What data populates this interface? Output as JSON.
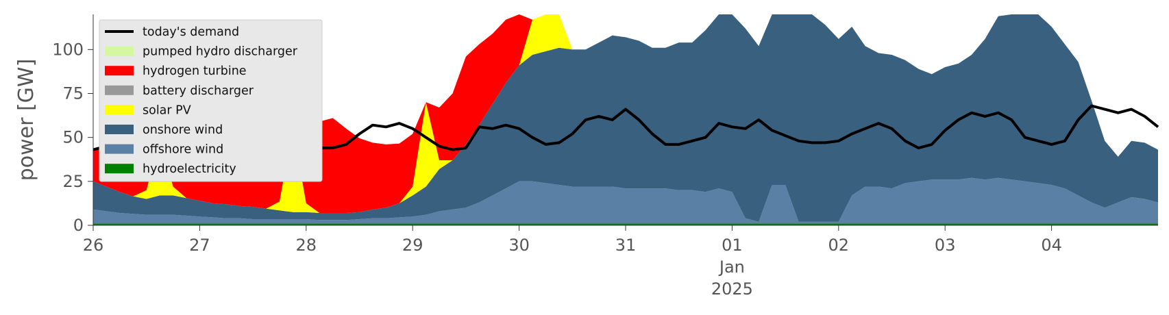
{
  "chart_data": {
    "type": "area",
    "ylabel": "power [GW]",
    "ylim": [
      0,
      120
    ],
    "yticks": [
      0,
      25,
      50,
      75,
      100
    ],
    "x_start": "2024-12-26T00:00",
    "x_end": "2025-01-05T00:00",
    "x_step_hours": 3,
    "xticks": [
      {
        "date": "2024-12-26",
        "label": "26"
      },
      {
        "date": "2024-12-27",
        "label": "27"
      },
      {
        "date": "2024-12-28",
        "label": "28"
      },
      {
        "date": "2024-12-29",
        "label": "29"
      },
      {
        "date": "2024-12-30",
        "label": "30"
      },
      {
        "date": "2024-12-31",
        "label": "31"
      },
      {
        "date": "2025-01-01",
        "label": "01",
        "sublabel1": "Jan",
        "sublabel2": "2025"
      },
      {
        "date": "2025-01-02",
        "label": "02"
      },
      {
        "date": "2025-01-03",
        "label": "03"
      },
      {
        "date": "2025-01-04",
        "label": "04"
      }
    ],
    "grid": false,
    "legend_position": "upper left",
    "series": [
      {
        "name": "hydroelectricity",
        "color": "#008000",
        "values": [
          1,
          1,
          1,
          1,
          1,
          1,
          1,
          1,
          1,
          1,
          1,
          1,
          1,
          1,
          1,
          1,
          1,
          1,
          1,
          1,
          1,
          1,
          1,
          1,
          1,
          1,
          1,
          1,
          1,
          1,
          1,
          1,
          1,
          1,
          1,
          1,
          1,
          1,
          1,
          1,
          1,
          1,
          1,
          1,
          1,
          1,
          1,
          1,
          1,
          1,
          1,
          1,
          1,
          1,
          1,
          1,
          1,
          1,
          1,
          1,
          1,
          1,
          1,
          1,
          1,
          1,
          1,
          1,
          1,
          1,
          1,
          1,
          1,
          1,
          1,
          1,
          1,
          1,
          1,
          1,
          1
        ]
      },
      {
        "name": "offshore wind",
        "color": "#5b80a5",
        "values": [
          8,
          7,
          6,
          5.5,
          5,
          5,
          5,
          4.5,
          4,
          3.5,
          3,
          3,
          2.5,
          2.5,
          2.5,
          2.5,
          2.5,
          2,
          2,
          2,
          2.5,
          3,
          3,
          3.5,
          4,
          5,
          7,
          8,
          9,
          12,
          16,
          20,
          24,
          24,
          23,
          22,
          21,
          21,
          21,
          21,
          20,
          20,
          20,
          20,
          19,
          19,
          18,
          20,
          18,
          3,
          1,
          22,
          22,
          1,
          1,
          1,
          1,
          16,
          21,
          21,
          20,
          23,
          24,
          25,
          25,
          25,
          26,
          25,
          26,
          25,
          24,
          23,
          22,
          20,
          16,
          12,
          9,
          12,
          15,
          14,
          12
        ]
      },
      {
        "name": "onshore wind",
        "color": "#3a6080",
        "values": [
          16,
          14,
          12,
          10,
          9,
          11,
          11,
          10,
          9,
          8,
          8,
          7,
          7,
          6,
          5,
          4,
          4,
          4,
          4,
          4,
          4,
          5,
          6,
          8,
          12,
          16,
          24,
          28,
          36,
          44,
          52,
          60,
          66,
          72,
          75,
          78,
          78,
          78,
          82,
          86,
          86,
          84,
          80,
          80,
          84,
          84,
          92,
          100,
          105,
          108,
          100,
          100,
          108,
          118,
          118,
          112,
          104,
          96,
          80,
          76,
          76,
          70,
          64,
          60,
          64,
          66,
          70,
          80,
          92,
          104,
          110,
          100,
          90,
          82,
          76,
          58,
          38,
          26,
          32,
          32,
          30
        ]
      },
      {
        "name": "solar PV",
        "color": "#ffff00",
        "values": [
          0,
          0,
          0,
          0,
          5,
          32,
          5,
          0,
          0,
          0,
          0,
          0,
          0,
          0,
          5,
          48,
          5,
          0,
          0,
          0,
          0,
          0,
          0,
          0,
          5,
          48,
          5,
          0,
          0,
          0,
          0,
          0,
          0,
          20,
          78,
          20,
          0,
          0,
          0,
          0,
          0,
          0,
          0,
          0,
          0,
          0,
          0,
          0,
          0,
          0,
          0,
          0,
          0,
          0,
          0,
          0,
          0,
          0,
          0,
          0,
          0,
          0,
          0,
          0,
          0,
          0,
          0,
          0,
          0,
          0,
          0,
          0,
          0,
          0,
          0,
          0,
          0,
          0,
          0,
          0,
          0
        ]
      },
      {
        "name": "battery discharger",
        "color": "#999999",
        "values": [
          0,
          0,
          0,
          0,
          0,
          0,
          0,
          0,
          0,
          0,
          0,
          0,
          0,
          0,
          0,
          0,
          0,
          0,
          0,
          0,
          0,
          0,
          0,
          0,
          0,
          0,
          0,
          0,
          0,
          0,
          0,
          0,
          0,
          0,
          0,
          0,
          0,
          0,
          0,
          0,
          0,
          0,
          0,
          0,
          0,
          0,
          0,
          0,
          0,
          0,
          0,
          0,
          0,
          0,
          0,
          0,
          0,
          0,
          0,
          0,
          0,
          0,
          0,
          0,
          0,
          0,
          0,
          0,
          0,
          0,
          0,
          0,
          0,
          0,
          0,
          0,
          0,
          0,
          0,
          0,
          0
        ]
      },
      {
        "name": "hydrogen turbine",
        "color": "#ff0000",
        "values": [
          18,
          22,
          24,
          28,
          30,
          10,
          30,
          34,
          36,
          40,
          44,
          50,
          52,
          54,
          50,
          4,
          48,
          52,
          54,
          48,
          42,
          38,
          36,
          34,
          30,
          0,
          30,
          38,
          50,
          46,
          40,
          36,
          32,
          0,
          0,
          0,
          0,
          0,
          0,
          0,
          0,
          0,
          0,
          0,
          0,
          0,
          0,
          0,
          0,
          0,
          0,
          0,
          0,
          0,
          0,
          0,
          0,
          0,
          0,
          0,
          0,
          0,
          0,
          0,
          0,
          0,
          0,
          0,
          0,
          0,
          0,
          0,
          0,
          0,
          0,
          0,
          0,
          0,
          0,
          0,
          0
        ]
      },
      {
        "name": "pumped hydro discharger",
        "color": "#d4f7a2",
        "values": [
          0,
          0,
          0,
          0,
          0,
          0,
          0,
          0,
          0,
          0,
          0,
          0,
          0,
          0,
          0,
          0,
          0,
          0,
          0,
          0,
          0,
          0,
          0,
          0,
          0,
          0,
          0,
          0,
          0,
          0,
          0,
          0,
          0,
          0,
          0,
          0,
          0,
          0,
          0,
          0,
          0,
          0,
          0,
          0,
          0,
          0,
          0,
          0,
          0,
          0,
          0,
          0,
          0,
          0,
          0,
          0,
          0,
          0,
          0,
          0,
          0,
          0,
          0,
          0,
          0,
          0,
          0,
          0,
          0,
          0,
          0,
          0,
          0,
          0,
          0,
          0,
          0,
          0,
          0,
          0,
          0
        ]
      },
      {
        "name": "today's demand",
        "color": "#000000",
        "kind": "line",
        "values": [
          43,
          45,
          49,
          51,
          54,
          58,
          56,
          55,
          57,
          61,
          60,
          58,
          54,
          52,
          50,
          46,
          45,
          44,
          44,
          46,
          52,
          57,
          56,
          58,
          55,
          50,
          45,
          43,
          44,
          56,
          55,
          57,
          55,
          50,
          46,
          47,
          52,
          60,
          62,
          60,
          66,
          60,
          52,
          46,
          46,
          48,
          50,
          58,
          56,
          55,
          60,
          54,
          51,
          48,
          47,
          47,
          48,
          52,
          55,
          58,
          55,
          48,
          44,
          46,
          54,
          60,
          64,
          62,
          64,
          60,
          50,
          48,
          46,
          48,
          60,
          68,
          66,
          64,
          66,
          62,
          56
        ]
      }
    ]
  }
}
